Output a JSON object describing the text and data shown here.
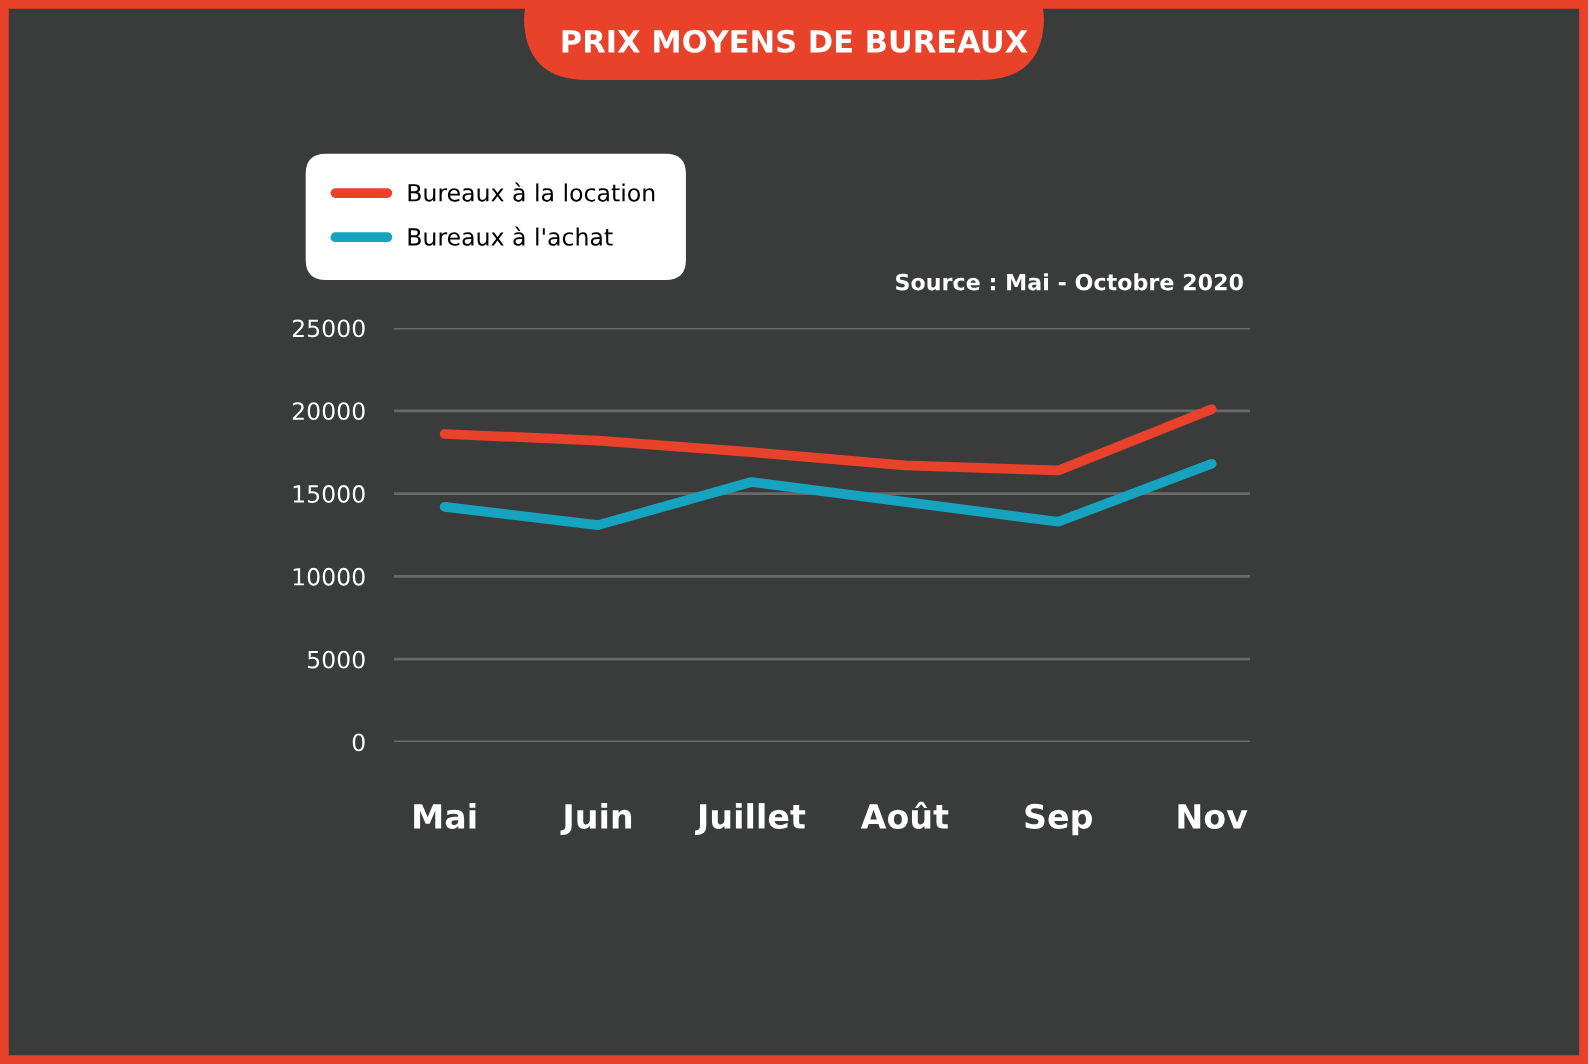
{
  "chart_data": {
    "type": "line",
    "title": "PRIX MOYENS DE BUREAUX",
    "categories": [
      "Mai",
      "Juin",
      "Juillet",
      "Août",
      "Sep",
      "Nov"
    ],
    "series": [
      {
        "name": "Bureaux à la location",
        "color": "#e8432a",
        "values": [
          18600,
          18200,
          17500,
          16700,
          16400,
          20100
        ]
      },
      {
        "name": "Bureaux à l'achat",
        "color": "#16a3bf",
        "values": [
          14200,
          13100,
          15700,
          14500,
          13300,
          16800
        ]
      }
    ],
    "ylim": [
      0,
      25000
    ],
    "yticks": [
      0,
      5000,
      10000,
      15000,
      20000,
      25000
    ],
    "grid": "y",
    "legend": "top left",
    "marker": "none",
    "line_style": "solid",
    "annotations": [
      "Source : Mai - Octobre 2020"
    ]
  }
}
